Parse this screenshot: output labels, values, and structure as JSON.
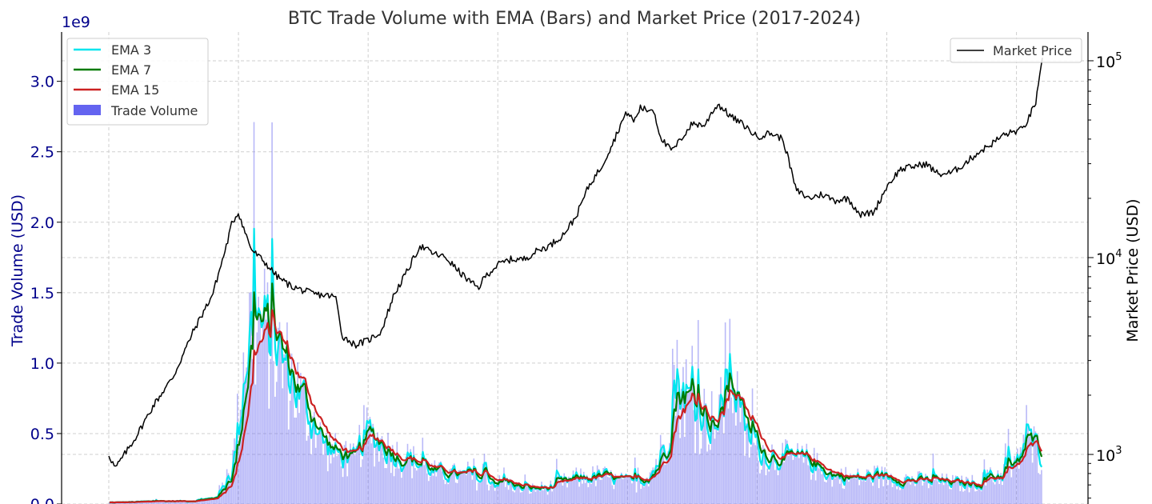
{
  "chart_data": {
    "type": "bar+line",
    "title": "BTC Trade Volume with EMA (Bars) and Market Price (2017-2024)",
    "x_range": [
      2017.0,
      2024.2
    ],
    "y_left": {
      "label": "Trade Volume (USD)",
      "offset_text": "1e9",
      "ticks": [
        0.0,
        0.5,
        1.0,
        1.5,
        2.0,
        2.5,
        3.0
      ],
      "tick_labels": [
        "0.0",
        "0.5",
        "1.0",
        "1.5",
        "2.0",
        "2.5",
        "3.0"
      ],
      "ylim": [
        0.0,
        3.35
      ],
      "color": "#00008b"
    },
    "y_right": {
      "label": "Market Price (USD)",
      "scale": "log",
      "ylim": [
        560,
        140000
      ],
      "major_ticks": [
        1000,
        10000,
        100000
      ],
      "tick_label_base": "10",
      "tick_label_exponents": [
        "3",
        "4",
        "5"
      ]
    },
    "legend_left": [
      {
        "label": "EMA 3",
        "color": "#00e5ee",
        "kind": "line"
      },
      {
        "label": "EMA 7",
        "color": "#007a00",
        "kind": "line"
      },
      {
        "label": "EMA 15",
        "color": "#cc2222",
        "kind": "line"
      },
      {
        "label": "Trade Volume",
        "color": "#6464f0",
        "kind": "patch"
      }
    ],
    "legend_right": [
      {
        "label": "Market Price",
        "color": "#000000",
        "kind": "line"
      }
    ],
    "volume_anchors": {
      "x": [
        2017.0,
        2017.4,
        2017.6,
        2017.8,
        2017.9,
        2017.95,
        2018.0,
        2018.05,
        2018.1,
        2018.2,
        2018.3,
        2018.4,
        2018.5,
        2018.6,
        2018.65,
        2018.75,
        2018.85,
        2018.9,
        2018.95,
        2019.0,
        2019.2,
        2019.4,
        2019.5,
        2019.7,
        2019.9,
        2020.1,
        2020.2,
        2020.4,
        2020.6,
        2020.8,
        2020.9,
        2021.0,
        2021.05,
        2021.1,
        2021.2,
        2021.3,
        2021.35,
        2021.4,
        2021.45,
        2021.5,
        2021.6,
        2021.7,
        2021.8,
        2021.9,
        2022.0,
        2022.2,
        2022.4,
        2022.45,
        2022.5,
        2022.6,
        2022.8,
        2022.9,
        2023.0,
        2023.2,
        2023.3,
        2023.5,
        2023.6,
        2023.7,
        2023.8,
        2023.9,
        2024.0,
        2024.05,
        2024.1,
        2024.15,
        2024.2
      ],
      "y": [
        0.01,
        0.02,
        0.02,
        0.04,
        0.15,
        0.28,
        0.65,
        1.15,
        1.3,
        1.2,
        1.05,
        0.9,
        0.7,
        0.5,
        0.42,
        0.35,
        0.3,
        0.3,
        0.48,
        0.5,
        0.35,
        0.28,
        0.22,
        0.2,
        0.16,
        0.14,
        0.1,
        0.12,
        0.18,
        0.2,
        0.17,
        0.15,
        0.14,
        0.16,
        0.25,
        0.45,
        0.95,
        0.82,
        0.8,
        0.65,
        0.62,
        0.55,
        0.95,
        0.48,
        0.38,
        0.32,
        0.3,
        0.28,
        0.22,
        0.2,
        0.18,
        0.2,
        0.19,
        0.17,
        0.16,
        0.15,
        0.14,
        0.15,
        0.18,
        0.22,
        0.25,
        0.45,
        0.42,
        0.4,
        0.35
      ]
    },
    "price_anchors": {
      "x": [
        2017.0,
        2017.05,
        2017.2,
        2017.35,
        2017.5,
        2017.65,
        2017.8,
        2017.9,
        2017.95,
        2018.0,
        2018.05,
        2018.1,
        2018.2,
        2018.3,
        2018.4,
        2018.5,
        2018.6,
        2018.7,
        2018.75,
        2018.8,
        2018.9,
        2019.0,
        2019.1,
        2019.2,
        2019.3,
        2019.4,
        2019.5,
        2019.6,
        2019.7,
        2019.8,
        2019.85,
        2019.9,
        2020.0,
        2020.1,
        2020.2,
        2020.3,
        2020.4,
        2020.5,
        2020.6,
        2020.7,
        2020.8,
        2020.9,
        2020.95,
        2021.0,
        2021.05,
        2021.1,
        2021.15,
        2021.2,
        2021.25,
        2021.3,
        2021.35,
        2021.4,
        2021.5,
        2021.6,
        2021.65,
        2021.7,
        2021.8,
        2021.9,
        2022.0,
        2022.1,
        2022.2,
        2022.25,
        2022.3,
        2022.4,
        2022.5,
        2022.6,
        2022.7,
        2022.8,
        2022.9,
        2023.0,
        2023.1,
        2023.2,
        2023.3,
        2023.4,
        2023.5,
        2023.6,
        2023.7,
        2023.8,
        2023.9,
        2024.0,
        2024.05,
        2024.1,
        2024.15,
        2024.2
      ],
      "y": [
        1000,
        850,
        1200,
        1800,
        2500,
        4200,
        6500,
        11000,
        15000,
        17000,
        13500,
        11000,
        9500,
        8000,
        7200,
        6800,
        6500,
        6400,
        6300,
        4000,
        3600,
        3800,
        4200,
        6500,
        8500,
        11500,
        10500,
        10000,
        8500,
        7400,
        7000,
        8000,
        9200,
        9800,
        9800,
        10800,
        11500,
        13000,
        16000,
        23000,
        29000,
        40000,
        48000,
        55000,
        49000,
        58000,
        56000,
        57000,
        42000,
        37000,
        35000,
        39000,
        48000,
        47000,
        55000,
        60000,
        52000,
        47000,
        41000,
        43000,
        40000,
        30000,
        22000,
        20000,
        21000,
        19500,
        20000,
        16500,
        17000,
        23000,
        28000,
        29000,
        30000,
        26500,
        27000,
        30000,
        34000,
        37500,
        42000,
        44000,
        45000,
        52000,
        62000,
        100000
      ]
    }
  }
}
